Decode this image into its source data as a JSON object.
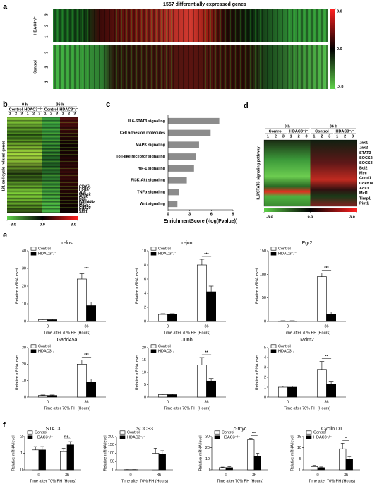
{
  "chart_data": [
    {
      "type": "heatmap",
      "panel": "a",
      "title": "1557 differentially expressed genes",
      "row_groups": [
        {
          "name": "HDAC3⁻/⁻",
          "replicates": [
            "3",
            "2",
            "1"
          ]
        },
        {
          "name": "Control",
          "replicates": [
            "3",
            "2",
            "1"
          ]
        }
      ],
      "colorbar": {
        "lim": [
          -3,
          3
        ],
        "colors": [
          "#5fd14a",
          "#000000",
          "#ff2020"
        ],
        "ticks": [
          {
            "value": 3,
            "label": "3.0"
          },
          {
            "value": 0,
            "label": "0.0"
          },
          {
            "value": -3,
            "label": "-3.0"
          }
        ]
      }
    },
    {
      "type": "heatmap",
      "panel": "b",
      "ylabel": "131 cell cycle-related genes",
      "columns": [
        {
          "time": "0 h",
          "groups": [
            {
              "name": "Control",
              "replicates": [
                "1",
                "2",
                "3"
              ]
            },
            {
              "name": "HDAC3⁻/⁻",
              "replicates": [
                "1",
                "2",
                "3"
              ]
            }
          ]
        },
        {
          "time": "36 h",
          "groups": [
            {
              "name": "Control",
              "replicates": [
                "1",
                "2",
                "3"
              ]
            },
            {
              "name": "HDAC3⁻/⁻",
              "replicates": [
                "1",
                "2",
                "3"
              ]
            }
          ]
        }
      ],
      "genes": [
        "CDK6",
        "Ccna2",
        "Ccnd1",
        "Jun",
        "Hdac2",
        "Junb",
        "Fos",
        "Plk1",
        "Gadd45a",
        "Myc",
        "Ccnb1",
        "Cdc20",
        "Egr2",
        "Akt1"
      ],
      "colorbar": {
        "lim": [
          -3,
          3
        ],
        "colors": [
          "#5fd14a",
          "#000000",
          "#ff2020"
        ],
        "ticks": [
          {
            "value": -3,
            "label": "-3.0"
          },
          {
            "value": 0,
            "label": "0.0"
          },
          {
            "value": 3,
            "label": "3.0"
          }
        ]
      }
    },
    {
      "type": "hbar",
      "panel": "c",
      "xlabel": "EnrichmentScore (-log(Pvalue))",
      "color": "#8c8c8c",
      "categories": [
        "IL6-STAT3 signaling",
        "Cell adhesion molecules",
        "MAPK signaling",
        "Toll-like receptor signaling",
        "HIF-1 signaling",
        "PI3K-Akt signaling",
        "TNFα  signaling",
        "Wnt signaling"
      ],
      "values": [
        7.1,
        5.9,
        4.3,
        3.9,
        3.6,
        2.6,
        1.5,
        1.3
      ],
      "xlim": [
        0,
        9
      ],
      "xticks": [
        0,
        3,
        6,
        9
      ]
    },
    {
      "type": "heatmap",
      "panel": "d",
      "ylabel": "IL6/STAT3 signaling pathway",
      "columns": [
        {
          "time": "0 h",
          "groups": [
            {
              "name": "Control",
              "replicates": [
                "1",
                "2",
                "3"
              ]
            },
            {
              "name": "HDAC3⁻/⁻",
              "replicates": [
                "1",
                "2",
                "3"
              ]
            }
          ]
        },
        {
          "time": "36 h",
          "groups": [
            {
              "name": "Control",
              "replicates": [
                "1",
                "2",
                "3"
              ]
            },
            {
              "name": "HDAC3⁻/⁻",
              "replicates": [
                "1",
                "2",
                "3"
              ]
            }
          ]
        }
      ],
      "genes": [
        "Jak1",
        "Jak2",
        "STAT3",
        "SOCS2",
        "SOCS3",
        "Bcl2",
        "Myc",
        "Ccnd1",
        "Cdkn1a",
        "Aox3",
        "Mcl1",
        "Timp1",
        "Pim1"
      ],
      "colorbar": {
        "lim": [
          -3,
          3
        ],
        "colors": [
          "#5fd14a",
          "#000000",
          "#ff2020"
        ],
        "ticks": [
          {
            "value": -3,
            "label": "-3.0"
          },
          {
            "value": 0,
            "label": "0.0"
          },
          {
            "value": 3,
            "label": "3.0"
          }
        ]
      }
    },
    {
      "type": "grouped_bar",
      "panel": "e",
      "title": "c-fos",
      "xlabel": "Time after 70% PH (Hours)",
      "ylabel": "Relative mRNA level",
      "categories": [
        "0",
        "36"
      ],
      "ylim": [
        0,
        40
      ],
      "yticks": [
        0,
        10,
        20,
        30,
        40
      ],
      "series": [
        {
          "name": "Control",
          "color": "#ffffff",
          "values": [
            1,
            24
          ],
          "errors": [
            0.3,
            3
          ]
        },
        {
          "name": "HDAC3⁻/⁻",
          "color": "#000000",
          "values": [
            1,
            9
          ],
          "errors": [
            0.3,
            2
          ]
        }
      ],
      "significance": [
        null,
        "***"
      ]
    },
    {
      "type": "grouped_bar",
      "title": "c-jun",
      "xlabel": "Time after 70% PH (Hours)",
      "ylabel": "Relative mRNA level",
      "categories": [
        "0",
        "36"
      ],
      "ylim": [
        0,
        10
      ],
      "yticks": [
        0,
        2,
        4,
        6,
        8,
        10
      ],
      "series": [
        {
          "name": "Control",
          "color": "#ffffff",
          "values": [
            1,
            8
          ],
          "errors": [
            0.1,
            0.8
          ]
        },
        {
          "name": "HDAC3⁻/⁻",
          "color": "#000000",
          "values": [
            1,
            4.2
          ],
          "errors": [
            0.1,
            0.8
          ]
        }
      ],
      "significance": [
        null,
        "***"
      ]
    },
    {
      "type": "grouped_bar",
      "title": "Egr2",
      "xlabel": "Time after 70% PH (Hours)",
      "ylabel": "Relative mRNA level",
      "categories": [
        "0",
        "36"
      ],
      "ylim": [
        0,
        150
      ],
      "yticks": [
        0,
        50,
        100,
        150
      ],
      "series": [
        {
          "name": "Control",
          "color": "#ffffff",
          "values": [
            1,
            95
          ],
          "errors": [
            0.5,
            8
          ]
        },
        {
          "name": "HDAC3⁻/⁻",
          "color": "#000000",
          "values": [
            1,
            15
          ],
          "errors": [
            0.5,
            5
          ]
        }
      ],
      "significance": [
        null,
        "***"
      ]
    },
    {
      "type": "grouped_bar",
      "title": "Gadd45a",
      "xlabel": "Time after 70% PH (Hours)",
      "ylabel": "Relative mRNA level",
      "categories": [
        "0",
        "36"
      ],
      "ylim": [
        0,
        30
      ],
      "yticks": [
        0,
        10,
        20,
        30
      ],
      "series": [
        {
          "name": "Control",
          "color": "#ffffff",
          "values": [
            1,
            20
          ],
          "errors": [
            0.3,
            2.5
          ]
        },
        {
          "name": "HDAC3⁻/⁻",
          "color": "#000000",
          "values": [
            1,
            9
          ],
          "errors": [
            0.3,
            2
          ]
        }
      ],
      "significance": [
        null,
        "***"
      ]
    },
    {
      "type": "grouped_bar",
      "title": "Junb",
      "xlabel": "Time after 70% PH (Hours)",
      "ylabel": "Relative mRNA level",
      "categories": [
        "0",
        "36"
      ],
      "ylim": [
        0,
        20
      ],
      "yticks": [
        0,
        5,
        10,
        15,
        20
      ],
      "series": [
        {
          "name": "Control",
          "color": "#ffffff",
          "values": [
            1,
            13
          ],
          "errors": [
            0.2,
            3
          ]
        },
        {
          "name": "HDAC3⁻/⁻",
          "color": "#000000",
          "values": [
            1,
            6.5
          ],
          "errors": [
            0.2,
            1
          ]
        }
      ],
      "significance": [
        null,
        "**"
      ]
    },
    {
      "type": "grouped_bar",
      "title": "Mdm2",
      "xlabel": "Time after 70% PH (Hours)",
      "ylabel": "Relative mRNA level",
      "categories": [
        "0",
        "36"
      ],
      "ylim": [
        0,
        5
      ],
      "yticks": [
        0,
        1,
        2,
        3,
        4,
        5
      ],
      "series": [
        {
          "name": "Control",
          "color": "#ffffff",
          "values": [
            1,
            2.8
          ],
          "errors": [
            0.1,
            0.8
          ]
        },
        {
          "name": "HDAC3⁻/⁻",
          "color": "#000000",
          "values": [
            1,
            1.3
          ],
          "errors": [
            0.1,
            0.3
          ]
        }
      ],
      "significance": [
        null,
        "**"
      ]
    },
    {
      "type": "grouped_bar",
      "panel": "f",
      "title": "STAT3",
      "xlabel": "Time after 70% PH (Hours)",
      "ylabel": "Relative mRNA level",
      "categories": [
        "0",
        "36"
      ],
      "ylim": [
        0,
        2
      ],
      "yticks": [
        0,
        1,
        2
      ],
      "series": [
        {
          "name": "Control",
          "color": "#ffffff",
          "values": [
            1.2,
            1.1
          ],
          "errors": [
            0.2,
            0.2
          ]
        },
        {
          "name": "HDAC3⁻/⁻",
          "color": "#000000",
          "values": [
            1.2,
            1.5
          ],
          "errors": [
            0.2,
            0.2
          ]
        }
      ],
      "significance": [
        null,
        "ns."
      ]
    },
    {
      "type": "grouped_bar",
      "title": "SOCS3",
      "xlabel": "Time after 70% PH (Hours)",
      "ylabel": "Relative mRNA level",
      "categories": [
        "0",
        "36"
      ],
      "ylim": [
        0,
        200
      ],
      "yticks": [
        0,
        50,
        100,
        150,
        200
      ],
      "series": [
        {
          "name": "Control",
          "color": "#ffffff",
          "values": [
            1,
            100
          ],
          "errors": [
            0.5,
            30
          ]
        },
        {
          "name": "HDAC3⁻/⁻",
          "color": "#000000",
          "values": [
            1,
            95
          ],
          "errors": [
            0.5,
            20
          ]
        }
      ],
      "significance": [
        null,
        null
      ]
    },
    {
      "type": "grouped_bar",
      "title": "c-myc",
      "xlabel": "Time after 70% PH (Hours)",
      "ylabel": "Relative mRNA level",
      "categories": [
        "0",
        "36"
      ],
      "ylim": [
        0,
        30
      ],
      "yticks": [
        0,
        10,
        20,
        30
      ],
      "series": [
        {
          "name": "Control",
          "color": "#ffffff",
          "values": [
            2,
            27
          ],
          "errors": [
            0.5,
            1.5
          ]
        },
        {
          "name": "HDAC3⁻/⁻",
          "color": "#000000",
          "values": [
            2,
            12
          ],
          "errors": [
            1,
            3
          ]
        }
      ],
      "significance": [
        null,
        "***"
      ]
    },
    {
      "type": "grouped_bar",
      "title": "Cyclin D1",
      "xlabel": "Time after 70% PH (Hours)",
      "ylabel": "Relative mRNA level",
      "categories": [
        "0",
        "36"
      ],
      "ylim": [
        0,
        15
      ],
      "yticks": [
        0,
        5,
        10,
        15
      ],
      "series": [
        {
          "name": "Control",
          "color": "#ffffff",
          "values": [
            1.5,
            9.5
          ],
          "errors": [
            0.5,
            2.5
          ]
        },
        {
          "name": "HDAC3⁻/⁻",
          "color": "#000000",
          "values": [
            1,
            5
          ],
          "errors": [
            0.3,
            1
          ]
        }
      ],
      "significance": [
        null,
        "**"
      ]
    }
  ]
}
